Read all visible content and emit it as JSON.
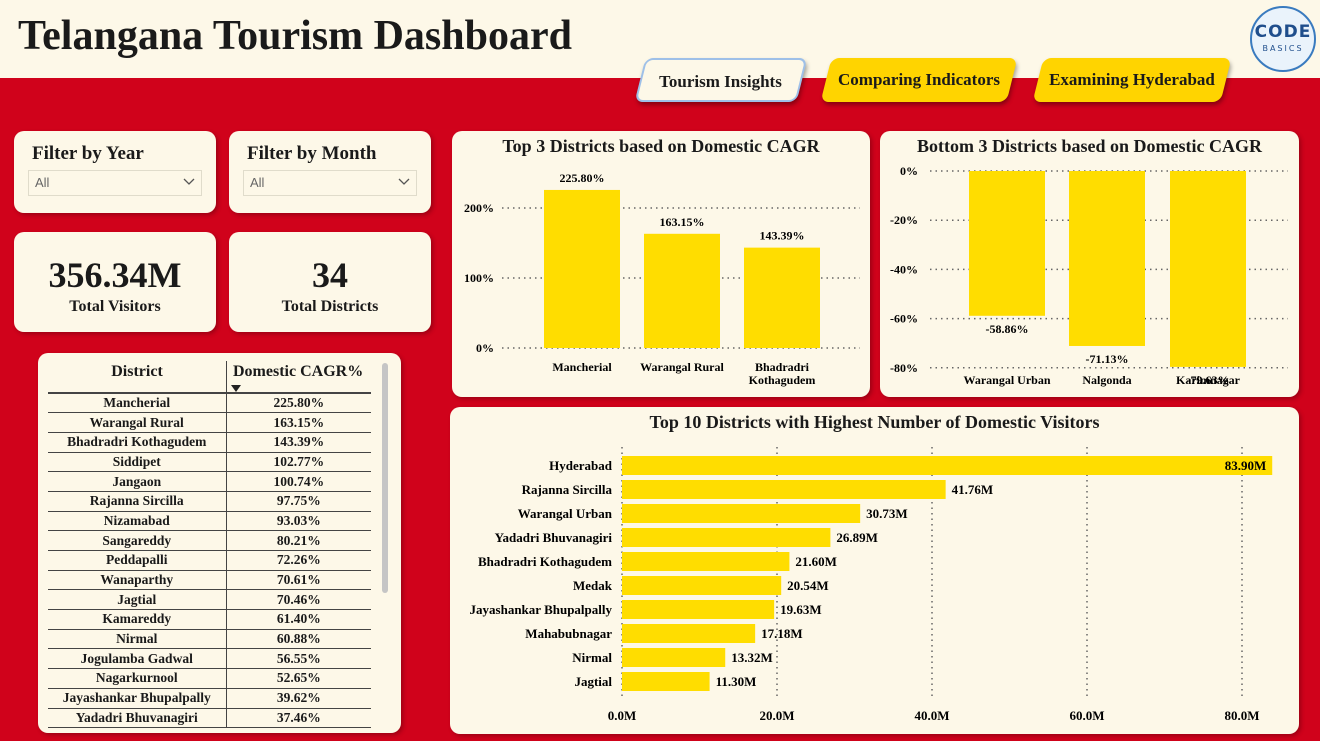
{
  "header": {
    "title": "Telangana Tourism Dashboard",
    "logo_line1": "CODE",
    "logo_line2": "BASICS"
  },
  "tabs": [
    {
      "label": "Tourism Insights",
      "active": true
    },
    {
      "label": "Comparing Indicators",
      "active": false
    },
    {
      "label": "Examining Hyderabad",
      "active": false
    }
  ],
  "filters": {
    "year": {
      "label": "Filter by Year",
      "value": "All"
    },
    "month": {
      "label": "Filter by Month",
      "value": "All"
    }
  },
  "kpis": {
    "visitors": {
      "value": "356.34M",
      "label": "Total Visitors"
    },
    "districts": {
      "value": "34",
      "label": "Total Districts"
    }
  },
  "table": {
    "headers": [
      "District",
      "Domestic CAGR%"
    ],
    "rows": [
      [
        "Mancherial",
        "225.80%"
      ],
      [
        "Warangal Rural",
        "163.15%"
      ],
      [
        "Bhadradri Kothagudem",
        "143.39%"
      ],
      [
        "Siddipet",
        "102.77%"
      ],
      [
        "Jangaon",
        "100.74%"
      ],
      [
        "Rajanna Sircilla",
        "97.75%"
      ],
      [
        "Nizamabad",
        "93.03%"
      ],
      [
        "Sangareddy",
        "80.21%"
      ],
      [
        "Peddapalli",
        "72.26%"
      ],
      [
        "Wanaparthy",
        "70.61%"
      ],
      [
        "Jagtial",
        "70.46%"
      ],
      [
        "Kamareddy",
        "61.40%"
      ],
      [
        "Nirmal",
        "60.88%"
      ],
      [
        "Jogulamba Gadwal",
        "56.55%"
      ],
      [
        "Nagarkurnool",
        "52.65%"
      ],
      [
        "Jayashankar Bhupalpally",
        "39.62%"
      ],
      [
        "Yadadri Bhuvanagiri",
        "37.46%"
      ]
    ]
  },
  "colors": {
    "accent": "#ffdd00",
    "background": "#d0021b",
    "card": "#fdf8e8"
  },
  "chart_data": [
    {
      "type": "bar",
      "title": "Top 3 Districts based on Domestic CAGR",
      "categories": [
        "Mancherial",
        "Warangal Rural",
        "Bhadradri Kothagudem"
      ],
      "values": [
        225.8,
        163.15,
        143.39
      ],
      "data_labels": [
        "225.80%",
        "163.15%",
        "143.39%"
      ],
      "yticks": [
        "0%",
        "100%",
        "200%"
      ],
      "ylim": [
        0,
        230
      ],
      "grid": true
    },
    {
      "type": "bar",
      "title": "Bottom 3 Districts based on Domestic CAGR",
      "categories": [
        "Warangal Urban",
        "Nalgonda",
        "Karimnagar"
      ],
      "values": [
        -58.86,
        -71.13,
        -79.63
      ],
      "data_labels": [
        "-58.86%",
        "-71.13%",
        "-79.63%"
      ],
      "yticks": [
        "0%",
        "-20%",
        "-40%",
        "-60%",
        "-80%"
      ],
      "ylim": [
        -80,
        0
      ],
      "grid": true
    },
    {
      "type": "bar",
      "orientation": "horizontal",
      "title": "Top 10 Districts with Highest Number of Domestic Visitors",
      "categories": [
        "Hyderabad",
        "Rajanna Sircilla",
        "Warangal Urban",
        "Yadadri Bhuvanagiri",
        "Bhadradri Kothagudem",
        "Medak",
        "Jayashankar Bhupalpally",
        "Mahabubnagar",
        "Nirmal",
        "Jagtial"
      ],
      "values": [
        83.9,
        41.76,
        30.73,
        26.89,
        21.6,
        20.54,
        19.63,
        17.18,
        13.32,
        11.3
      ],
      "data_labels": [
        "83.90M",
        "41.76M",
        "30.73M",
        "26.89M",
        "21.60M",
        "20.54M",
        "19.63M",
        "17.18M",
        "13.32M",
        "11.30M"
      ],
      "xticks": [
        "0.0M",
        "20.0M",
        "40.0M",
        "60.0M",
        "80.0M"
      ],
      "xlim": [
        0,
        84
      ],
      "grid": true
    }
  ]
}
